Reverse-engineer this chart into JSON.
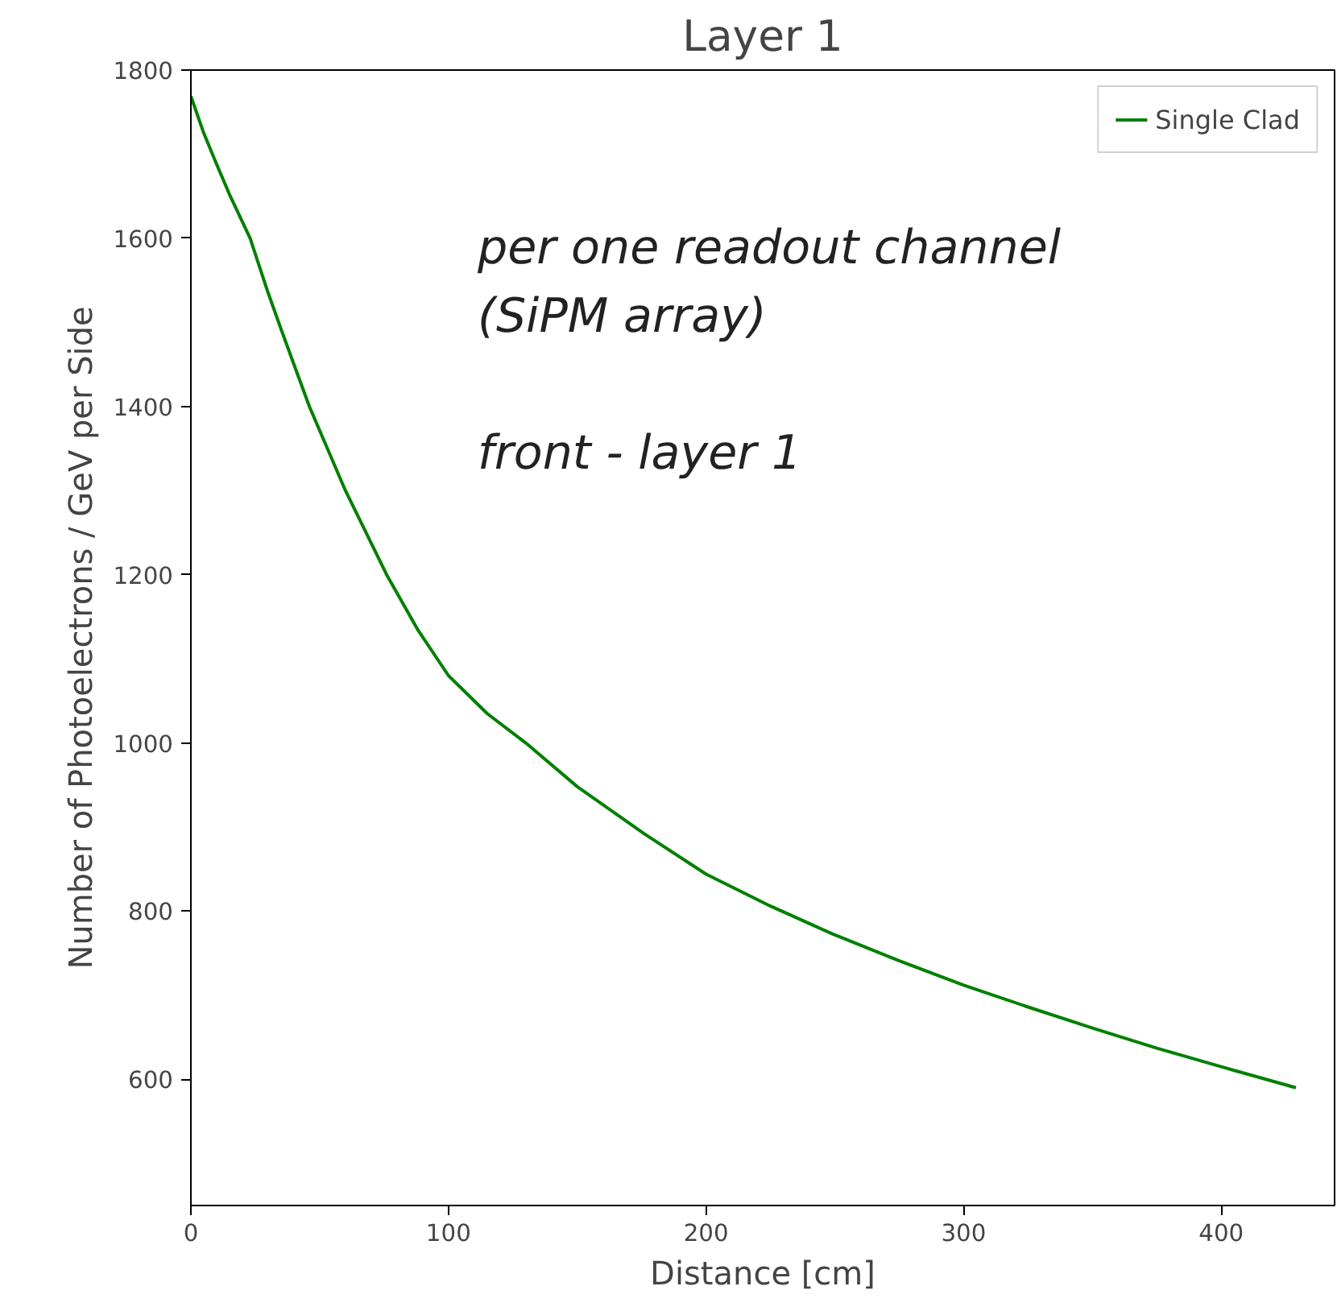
{
  "chart_data": {
    "type": "line",
    "title": "Layer 1",
    "xlabel": "Distance [cm]",
    "ylabel": "Number of Photoelectrons / GeV per Side",
    "x": [
      0,
      5,
      10,
      15,
      23,
      30,
      35,
      40,
      46,
      53,
      60,
      68,
      76,
      88,
      100,
      115,
      130,
      150,
      176,
      200,
      225,
      249,
      275,
      300,
      325,
      350,
      375,
      400,
      429
    ],
    "series": [
      {
        "name": "Single Clad",
        "color": "#008000",
        "values": [
          1769,
          1725,
          1688,
          1652,
          1600,
          1535,
          1492,
          1450,
          1400,
          1350,
          1300,
          1250,
          1200,
          1135,
          1080,
          1035,
          1000,
          948,
          892,
          844,
          806,
          773,
          741,
          712,
          686,
          661,
          637,
          615,
          590
        ]
      }
    ],
    "xlim": [
      0,
      444
    ],
    "xticks": [
      0,
      100,
      200,
      300,
      400
    ],
    "ylim": [
      450,
      1800
    ],
    "yticks": [
      600,
      800,
      1000,
      1200,
      1400,
      1600,
      1800
    ],
    "legend": "top right",
    "grid": false,
    "marker": "none",
    "line_style": "solid",
    "annotations": [
      "per one readout channel\n(SiPM array)\n\nfront - layer 1"
    ]
  }
}
